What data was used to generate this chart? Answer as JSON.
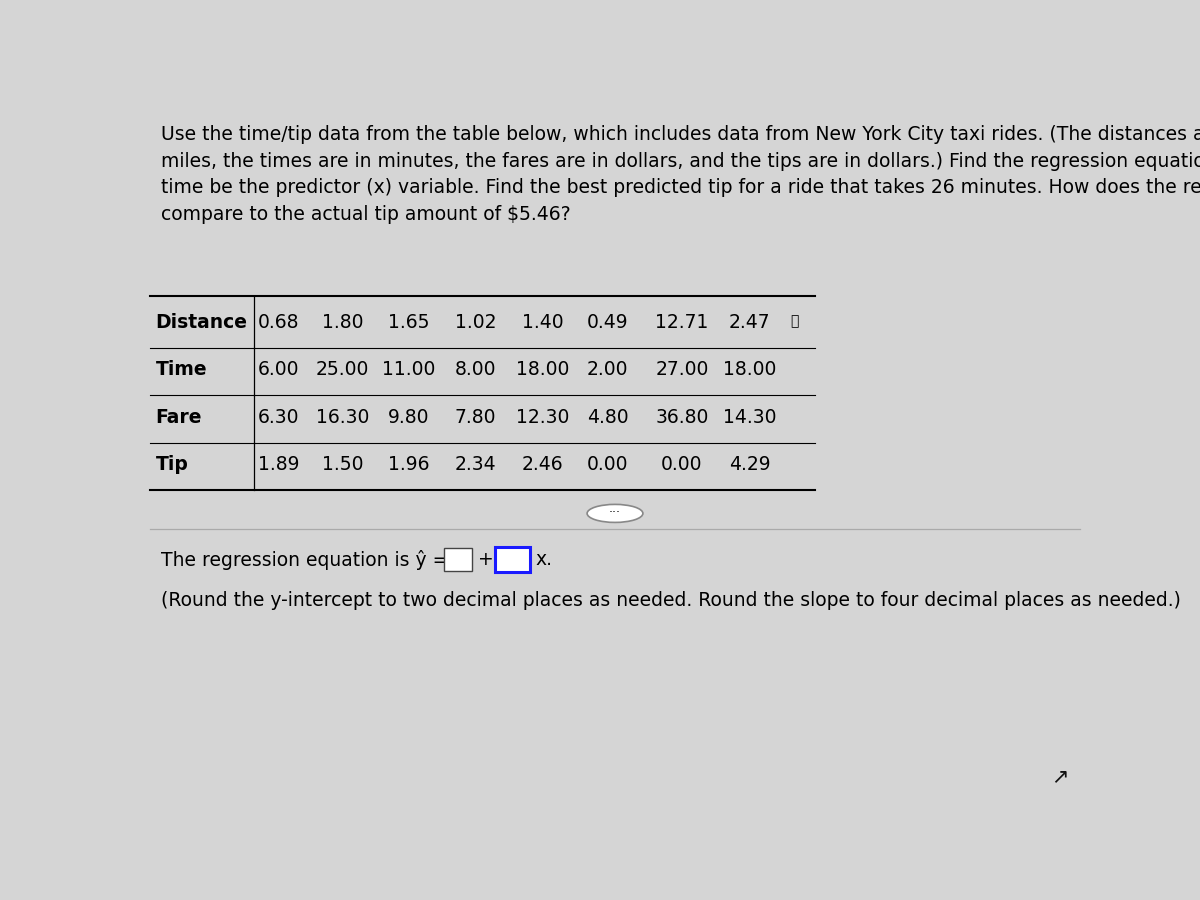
{
  "paragraph_text": "Use the time/tip data from the table below, which includes data from New York City taxi rides. (The distances are in\nmiles, the times are in minutes, the fares are in dollars, and the tips are in dollars.) Find the regression equation, letting\ntime be the predictor (x) variable. Find the best predicted tip for a ride that takes 26 minutes. How does the result\ncompare to the actual tip amount of $5.46?",
  "table_headers": [
    "Distance",
    "Time",
    "Fare",
    "Tip"
  ],
  "table_data": [
    [
      "0.68",
      "1.80",
      "1.65",
      "1.02",
      "1.40",
      "0.49",
      "12.71",
      "2.47"
    ],
    [
      "6.00",
      "25.00",
      "11.00",
      "8.00",
      "18.00",
      "2.00",
      "27.00",
      "18.00"
    ],
    [
      "6.30",
      "16.30",
      "9.80",
      "7.80",
      "12.30",
      "4.80",
      "36.80",
      "14.30"
    ],
    [
      "1.89",
      "1.50",
      "1.96",
      "2.34",
      "2.46",
      "0.00",
      "0.00",
      "4.29"
    ]
  ],
  "regression_note": "(Round the y-intercept to two decimal places as needed. Round the slope to four decimal places as needed.)",
  "bg_color": "#d5d5d5",
  "text_color": "#000000",
  "blue_color": "#1a1aff",
  "table_line_color": "#000000",
  "sep_line_color": "#aaaaaa",
  "font_size_paragraph": 13.5,
  "font_size_table": 13.5,
  "font_size_regression": 13.5
}
